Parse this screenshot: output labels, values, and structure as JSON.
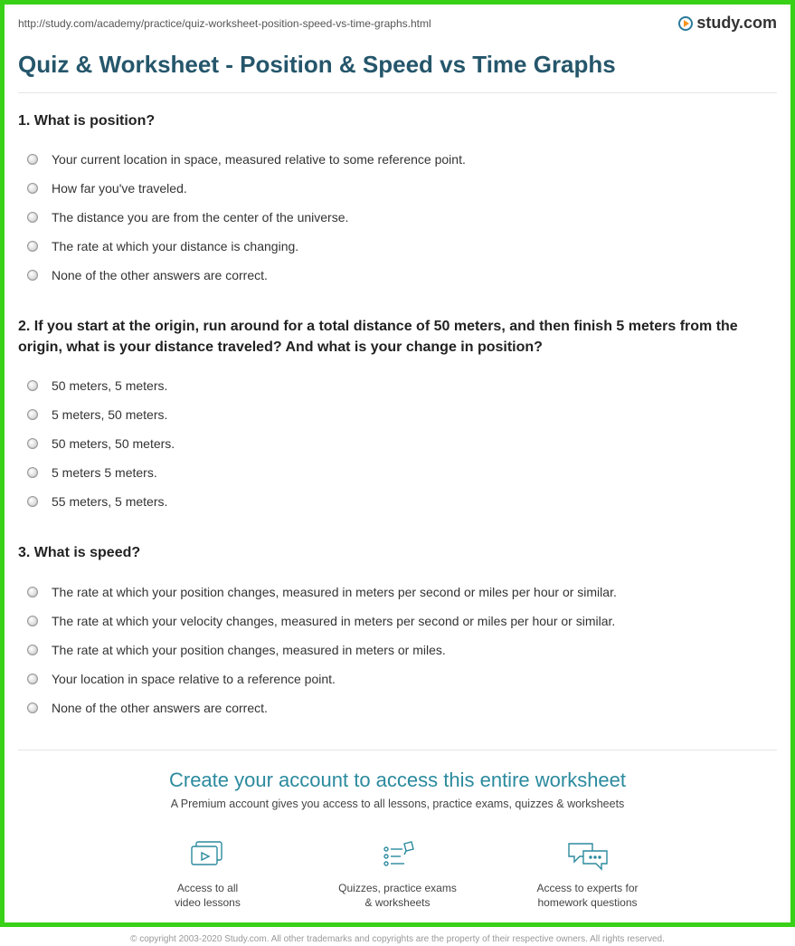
{
  "url": "http://study.com/academy/practice/quiz-worksheet-position-speed-vs-time-graphs.html",
  "logo_text": "study.com",
  "page_title": "Quiz & Worksheet - Position & Speed vs Time Graphs",
  "questions": [
    {
      "number": "1.",
      "text": "What is position?",
      "options": [
        "Your current location in space, measured relative to some reference point.",
        "How far you've traveled.",
        "The distance you are from the center of the universe.",
        "The rate at which your distance is changing.",
        "None of the other answers are correct."
      ]
    },
    {
      "number": "2.",
      "text": "If you start at the origin, run around for a total distance of 50 meters, and then finish 5 meters from the origin, what is your distance traveled? And what is your change in position?",
      "options": [
        "50 meters, 5 meters.",
        "5 meters, 50 meters.",
        "50 meters, 50 meters.",
        "5 meters 5 meters.",
        "55 meters, 5 meters."
      ]
    },
    {
      "number": "3.",
      "text": "What is speed?",
      "options": [
        "The rate at which your position changes, measured in meters per second or miles per hour or similar.",
        "The rate at which your velocity changes, measured in meters per second or miles per hour or similar.",
        "The rate at which your position changes, measured in meters or miles.",
        "Your location in space relative to a reference point.",
        "None of the other answers are correct."
      ]
    }
  ],
  "cta": {
    "title": "Create your account to access this entire worksheet",
    "subtitle": "A Premium account gives you access to all lessons, practice exams, quizzes & worksheets"
  },
  "features": [
    {
      "line1": "Access to all",
      "line2": "video lessons"
    },
    {
      "line1": "Quizzes, practice exams",
      "line2": "& worksheets"
    },
    {
      "line1": "Access to experts for",
      "line2": "homework questions"
    }
  ],
  "copyright": "© copyright 2003-2020 Study.com. All other trademarks and copyrights are the property of their respective owners. All rights reserved."
}
